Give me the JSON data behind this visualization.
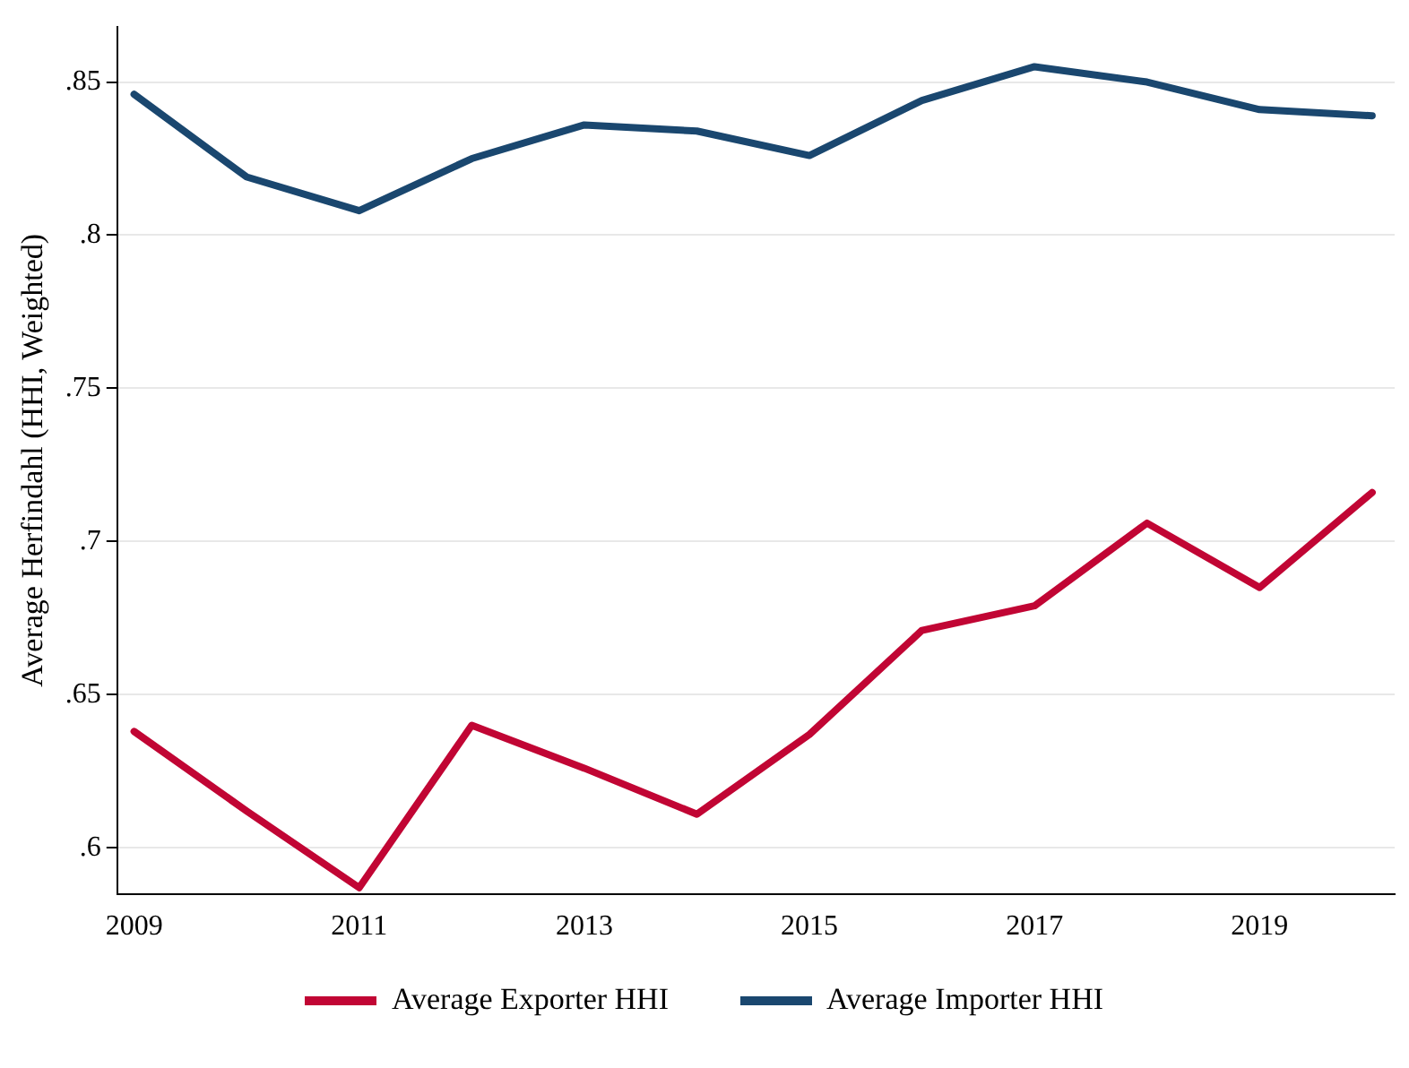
{
  "chart_data": {
    "type": "line",
    "ylabel": "Average Herfindahl (HHI, Weighted)",
    "x": [
      2009,
      2010,
      2011,
      2012,
      2013,
      2014,
      2015,
      2016,
      2017,
      2018,
      2019,
      2020
    ],
    "series": [
      {
        "name": "Average Exporter HHI",
        "color": "#c10534",
        "values": [
          0.638,
          0.612,
          0.587,
          0.64,
          0.626,
          0.611,
          0.637,
          0.671,
          0.679,
          0.706,
          0.685,
          0.716
        ]
      },
      {
        "name": "Average Importer HHI",
        "color": "#1a476f",
        "values": [
          0.846,
          0.819,
          0.808,
          0.825,
          0.836,
          0.834,
          0.826,
          0.844,
          0.855,
          0.85,
          0.841,
          0.839
        ]
      }
    ],
    "xlim": [
      2008.85,
      2020.2
    ],
    "xticks": [
      2009,
      2011,
      2013,
      2015,
      2017,
      2019
    ],
    "ylim": [
      0.585,
      0.868
    ],
    "yticks": [
      {
        "value": 0.6,
        "label": ".6"
      },
      {
        "value": 0.65,
        "label": ".65"
      },
      {
        "value": 0.7,
        "label": ".7"
      },
      {
        "value": 0.75,
        "label": ".75"
      },
      {
        "value": 0.8,
        "label": ".8"
      },
      {
        "value": 0.85,
        "label": ".85"
      }
    ],
    "grid": "y",
    "legend": "bottom",
    "marker": "none",
    "line_style": "solid"
  }
}
